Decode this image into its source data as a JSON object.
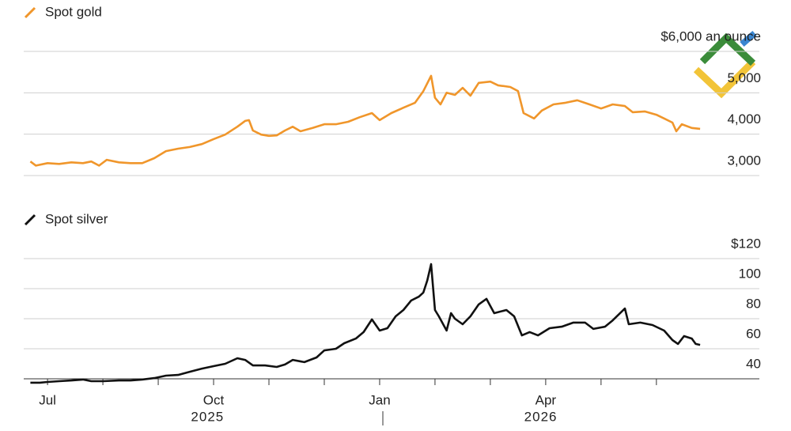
{
  "chart_data": [
    {
      "type": "line",
      "series": [
        {
          "name": "Spot gold",
          "color": "#f0962b",
          "values": [
            3340,
            3240,
            3300,
            3280,
            3320,
            3300,
            3340,
            3240,
            3380,
            3320,
            3300,
            3300,
            3420,
            3590,
            3650,
            3690,
            3760,
            3880,
            3990,
            4180,
            4320,
            4340,
            4090,
            3990,
            3960,
            3970,
            4090,
            4180,
            4070,
            4150,
            4240,
            4240,
            4300,
            4410,
            4510,
            4340,
            4510,
            4640,
            4760,
            5040,
            5410,
            4880,
            4720,
            5000,
            4950,
            5120,
            4930,
            5240,
            5270,
            5180,
            5140,
            5040,
            4510,
            4380,
            4570,
            4720,
            4760,
            4820,
            4720,
            4620,
            4720,
            4680,
            4530,
            4550,
            4470,
            4380,
            4280,
            4070,
            4240,
            4150,
            4130
          ]
        }
      ],
      "x": [
        -0.31,
        -0.21,
        0,
        0.21,
        0.43,
        0.64,
        0.79,
        0.93,
        1.07,
        1.29,
        1.5,
        1.71,
        1.93,
        2.14,
        2.36,
        2.57,
        2.79,
        3,
        3.21,
        3.43,
        3.57,
        3.64,
        3.71,
        3.86,
        4,
        4.14,
        4.29,
        4.43,
        4.57,
        4.79,
        5,
        5.21,
        5.43,
        5.64,
        5.86,
        6,
        6.21,
        6.43,
        6.64,
        6.79,
        6.93,
        7,
        7.1,
        7.21,
        7.36,
        7.5,
        7.64,
        7.79,
        8,
        8.14,
        8.36,
        8.5,
        8.6,
        8.79,
        8.93,
        9.14,
        9.36,
        9.57,
        9.79,
        10,
        10.21,
        10.43,
        10.57,
        10.79,
        11,
        11.14,
        11.29,
        11.36,
        11.46,
        11.64,
        11.79
      ],
      "xlim": [
        -0.43,
        12.86
      ],
      "ylim": [
        3000,
        6000
      ],
      "yticks": [
        {
          "value": 6000,
          "label": "$6,000 an ounce"
        },
        {
          "value": 5000,
          "label": "5,000"
        },
        {
          "value": 4000,
          "label": "4,000"
        },
        {
          "value": 3000,
          "label": "3,000"
        }
      ],
      "grid": true
    },
    {
      "type": "line",
      "series": [
        {
          "name": "Spot silver",
          "color": "#111111",
          "values": [
            37.4,
            37.4,
            37.9,
            38.4,
            38.9,
            39.5,
            38.4,
            38.4,
            38.9,
            38.9,
            39.5,
            40.5,
            42.1,
            42.6,
            44.7,
            46.8,
            48.4,
            50,
            53.7,
            52.6,
            48.9,
            48.9,
            47.9,
            49.5,
            52.6,
            51.1,
            54.2,
            58.9,
            60,
            63.7,
            66.8,
            71.1,
            79.5,
            72.1,
            73.7,
            81.6,
            85.8,
            92.1,
            94.7,
            97.4,
            105.3,
            116.3,
            85.8,
            81.6,
            72.1,
            83.7,
            80,
            76.3,
            81.6,
            89.5,
            93.2,
            83.7,
            85.8,
            81.6,
            68.9,
            71.1,
            68.9,
            73.7,
            74.7,
            77.4,
            77.4,
            73.2,
            74.7,
            78.9,
            86.8,
            76.3,
            77.4,
            75.8,
            72.1,
            65.8,
            63.2,
            68.4,
            66.8,
            63.2,
            62.6
          ]
        }
      ],
      "x": [
        -0.31,
        -0.14,
        0,
        0.21,
        0.43,
        0.64,
        0.79,
        1,
        1.29,
        1.5,
        1.71,
        1.93,
        2.14,
        2.36,
        2.57,
        2.79,
        3,
        3.21,
        3.43,
        3.57,
        3.71,
        3.93,
        4.14,
        4.29,
        4.43,
        4.64,
        4.86,
        5,
        5.21,
        5.36,
        5.57,
        5.71,
        5.86,
        6,
        6.14,
        6.29,
        6.43,
        6.57,
        6.71,
        6.79,
        6.86,
        6.93,
        7,
        7.07,
        7.21,
        7.29,
        7.36,
        7.5,
        7.64,
        7.79,
        7.93,
        8.07,
        8.29,
        8.43,
        8.57,
        8.71,
        8.86,
        9.07,
        9.29,
        9.5,
        9.71,
        9.86,
        10.07,
        10.21,
        10.43,
        10.5,
        10.71,
        10.93,
        11.14,
        11.29,
        11.39,
        11.5,
        11.64,
        11.71,
        11.79
      ],
      "xlim": [
        -0.43,
        12.86
      ],
      "xticks": [
        {
          "value": 0,
          "label": "Jul"
        },
        {
          "value": 1,
          "label": null
        },
        {
          "value": 2,
          "label": null
        },
        {
          "value": 3,
          "label": "Oct"
        },
        {
          "value": 4,
          "label": null
        },
        {
          "value": 5,
          "label": null
        },
        {
          "value": 6,
          "label": "Jan"
        },
        {
          "value": 7,
          "label": null
        },
        {
          "value": 8,
          "label": null
        },
        {
          "value": 9,
          "label": "Apr"
        },
        {
          "value": 10,
          "label": null
        },
        {
          "value": 11,
          "label": null
        }
      ],
      "xyear_labels": [
        {
          "value": 2.89,
          "label": "2025"
        },
        {
          "value": 8.91,
          "label": "2026"
        }
      ],
      "ylim": [
        40,
        120
      ],
      "yticks": [
        {
          "value": 120,
          "label": "$120"
        },
        100,
        80,
        60,
        40
      ],
      "grid": true
    }
  ]
}
